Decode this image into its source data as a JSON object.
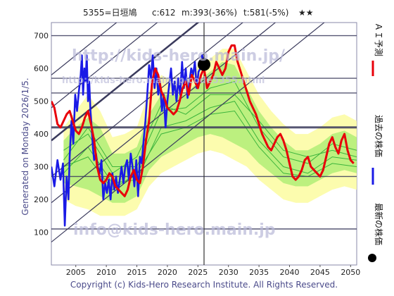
{
  "header": {
    "code_name": "5355=日垣鳩",
    "current": "c:612",
    "mid": "m:393(-36%)",
    "target": "t:581(-5%)",
    "stars": "★★"
  },
  "side_text": "Generated on Monday 2026/1/5.",
  "copyright": "Copyright (c) Kids-Hero Research Institute. All Rights Reserved.",
  "watermarks": {
    "url": "http://kids-hero.main.jp/",
    "url_sub": "http://kids-hero.main.jp/code5355.html",
    "email": "info@kids-hero.main.jp"
  },
  "legend": {
    "ai": "ＡＩ予測",
    "past": "過去の株価",
    "latest": "最新の株価"
  },
  "colors": {
    "ai_line": "#e8000a",
    "past_line": "#1a1ae6",
    "latest_marker": "#000000",
    "band_outer": "#fbfba0",
    "band_inner": "#b5ee7a",
    "band_lines": "#3cb43c",
    "grid": "#8a8aa8",
    "channel": "#3a3a5c"
  },
  "chart_data": {
    "type": "line",
    "xlim": [
      2001,
      2051
    ],
    "ylim": [
      0,
      740
    ],
    "x_ticks": [
      2005,
      2010,
      2015,
      2020,
      2025,
      2030,
      2035,
      2040,
      2045,
      2050
    ],
    "y_ticks": [
      100,
      200,
      300,
      400,
      500,
      600,
      700
    ],
    "hlines": [
      {
        "y": 700,
        "strength": 1
      },
      {
        "y": 570,
        "strength": 1
      },
      {
        "y": 525,
        "strength": 1
      },
      {
        "y": 420,
        "strength": 3
      },
      {
        "y": 270,
        "strength": 1
      },
      {
        "y": 110,
        "strength": 1
      }
    ],
    "vline": 2026,
    "channel": {
      "slope": 15,
      "intercepts_at_2001": [
        70,
        190,
        270,
        380,
        480,
        580
      ]
    },
    "latest": {
      "x": 2026,
      "y": 612
    },
    "series": [
      {
        "key": "past",
        "x": [
          2001.0,
          2001.5,
          2002.0,
          2002.5,
          2002.9,
          2003.2,
          2003.5,
          2003.8,
          2004.0,
          2004.3,
          2004.6,
          2004.9,
          2005.2,
          2005.5,
          2005.8,
          2006.0,
          2006.2,
          2006.4,
          2006.6,
          2006.8,
          2007.0,
          2007.2,
          2007.4,
          2007.6,
          2007.8,
          2008.0,
          2008.3,
          2008.6,
          2008.9,
          2009.2,
          2009.5,
          2009.8,
          2010.1,
          2010.4,
          2010.7,
          2011.0,
          2011.3,
          2011.6,
          2011.9,
          2012.2,
          2012.5,
          2012.8,
          2013.1,
          2013.4,
          2013.7,
          2014.0,
          2014.3,
          2014.6,
          2014.9,
          2015.2,
          2015.5,
          2015.8,
          2016.1,
          2016.4,
          2016.7,
          2017.0,
          2017.3,
          2017.6,
          2017.9,
          2018.2,
          2018.5,
          2018.8,
          2019.1,
          2019.4,
          2019.7,
          2020.0,
          2020.3,
          2020.6,
          2020.9,
          2021.2,
          2021.5,
          2021.8,
          2022.1,
          2022.4,
          2022.7,
          2023.0,
          2023.3,
          2023.6,
          2023.9,
          2024.2,
          2024.5,
          2024.8,
          2025.1,
          2025.4,
          2025.7,
          2026.0
        ],
        "y": [
          300,
          240,
          320,
          260,
          310,
          120,
          270,
          200,
          330,
          440,
          370,
          520,
          470,
          530,
          580,
          640,
          520,
          600,
          560,
          640,
          500,
          560,
          470,
          420,
          360,
          320,
          340,
          300,
          280,
          320,
          200,
          250,
          220,
          260,
          200,
          280,
          230,
          270,
          220,
          260,
          300,
          250,
          300,
          320,
          260,
          340,
          300,
          240,
          320,
          210,
          330,
          310,
          380,
          440,
          520,
          610,
          570,
          640,
          540,
          600,
          520,
          560,
          470,
          520,
          420,
          500,
          550,
          600,
          520,
          560,
          500,
          570,
          520,
          620,
          540,
          600,
          510,
          560,
          600,
          580,
          620,
          540,
          590,
          600,
          640,
          612
        ]
      },
      {
        "key": "ai",
        "x": [
          2001.0,
          2001.5,
          2002.0,
          2002.5,
          2003.0,
          2003.5,
          2004.0,
          2004.5,
          2005.0,
          2005.5,
          2006.0,
          2006.5,
          2007.0,
          2007.5,
          2008.0,
          2008.5,
          2009.0,
          2009.5,
          2010.0,
          2010.5,
          2011.0,
          2011.5,
          2012.0,
          2012.5,
          2013.0,
          2013.5,
          2014.0,
          2014.5,
          2015.0,
          2015.5,
          2016.0,
          2016.5,
          2017.0,
          2017.5,
          2018.0,
          2018.5,
          2019.0,
          2019.5,
          2020.0,
          2020.5,
          2021.0,
          2021.5,
          2022.0,
          2022.5,
          2023.0,
          2023.5,
          2024.0,
          2024.5,
          2025.0,
          2025.5,
          2026.0,
          2026.5,
          2027.0,
          2027.5,
          2028.0,
          2028.5,
          2029.0,
          2029.5,
          2030.0,
          2030.5,
          2031.0,
          2031.5,
          2032.0,
          2032.5,
          2033.0,
          2033.5,
          2034.0,
          2034.5,
          2035.0,
          2035.5,
          2036.0,
          2036.5,
          2037.0,
          2037.5,
          2038.0,
          2038.5,
          2039.0,
          2039.5,
          2040.0,
          2040.5,
          2041.0,
          2041.5,
          2042.0,
          2042.5,
          2043.0,
          2043.5,
          2044.0,
          2044.5,
          2045.0,
          2045.5,
          2046.0,
          2046.5,
          2047.0,
          2047.5,
          2048.0,
          2048.5,
          2049.0,
          2049.5,
          2050.0,
          2050.5
        ],
        "y": [
          500,
          480,
          430,
          420,
          440,
          460,
          470,
          440,
          410,
          400,
          420,
          450,
          470,
          430,
          380,
          300,
          260,
          250,
          260,
          280,
          270,
          240,
          230,
          220,
          210,
          230,
          270,
          290,
          260,
          250,
          300,
          380,
          440,
          560,
          600,
          580,
          530,
          510,
          480,
          470,
          460,
          470,
          500,
          540,
          560,
          520,
          580,
          560,
          540,
          580,
          600,
          540,
          560,
          580,
          620,
          600,
          580,
          600,
          650,
          670,
          670,
          620,
          590,
          560,
          530,
          500,
          480,
          460,
          430,
          400,
          380,
          360,
          350,
          370,
          390,
          400,
          380,
          350,
          310,
          270,
          260,
          270,
          290,
          320,
          330,
          300,
          290,
          280,
          270,
          290,
          330,
          370,
          390,
          360,
          340,
          380,
          400,
          350,
          320,
          310
        ]
      }
    ],
    "bands": [
      {
        "key": "outer",
        "x": [
          2003,
          2005,
          2007,
          2009,
          2011,
          2013,
          2015,
          2017,
          2019,
          2021,
          2023,
          2025,
          2027,
          2029,
          2031,
          2033,
          2035,
          2037,
          2039,
          2041,
          2043,
          2045,
          2047,
          2049,
          2051
        ],
        "upper": [
          420,
          470,
          520,
          470,
          390,
          400,
          420,
          530,
          580,
          560,
          560,
          610,
          630,
          660,
          660,
          590,
          520,
          470,
          430,
          400,
          400,
          420,
          450,
          460,
          440
        ],
        "lower": [
          200,
          180,
          170,
          150,
          150,
          150,
          170,
          240,
          280,
          300,
          320,
          340,
          350,
          340,
          320,
          300,
          260,
          230,
          200,
          190,
          190,
          210,
          230,
          240,
          230
        ]
      },
      {
        "key": "inner",
        "x": [
          2003,
          2005,
          2007,
          2009,
          2011,
          2013,
          2015,
          2017,
          2019,
          2021,
          2023,
          2025,
          2027,
          2029,
          2031,
          2033,
          2035,
          2037,
          2039,
          2041,
          2043,
          2045,
          2047,
          2049,
          2051
        ],
        "upper": [
          380,
          420,
          450,
          420,
          340,
          340,
          360,
          460,
          520,
          520,
          520,
          560,
          590,
          620,
          610,
          540,
          470,
          420,
          380,
          350,
          350,
          370,
          400,
          410,
          390
        ],
        "lower": [
          250,
          240,
          230,
          210,
          190,
          190,
          210,
          290,
          330,
          350,
          370,
          390,
          400,
          390,
          370,
          350,
          310,
          280,
          250,
          240,
          240,
          260,
          280,
          290,
          280
        ]
      }
    ],
    "band_lines": [
      {
        "x": [
          2003,
          2007,
          2011,
          2015,
          2019,
          2023,
          2027,
          2031,
          2035,
          2039,
          2043,
          2047,
          2051
        ],
        "y": [
          320,
          420,
          300,
          300,
          470,
          480,
          540,
          560,
          420,
          330,
          310,
          370,
          350
        ]
      },
      {
        "x": [
          2003,
          2007,
          2011,
          2015,
          2019,
          2023,
          2027,
          2031,
          2035,
          2039,
          2043,
          2047,
          2051
        ],
        "y": [
          280,
          360,
          250,
          260,
          420,
          440,
          480,
          500,
          380,
          300,
          280,
          330,
          320
        ]
      },
      {
        "x": [
          2003,
          2007,
          2011,
          2015,
          2019,
          2023,
          2027,
          2031,
          2035,
          2039,
          2043,
          2047,
          2051
        ],
        "y": [
          350,
          400,
          280,
          330,
          490,
          460,
          520,
          520,
          440,
          350,
          330,
          350,
          330
        ]
      },
      {
        "x": [
          2003,
          2007,
          2011,
          2015,
          2019,
          2023,
          2027,
          2031,
          2035,
          2039,
          2043,
          2047,
          2051
        ],
        "y": [
          300,
          330,
          230,
          280,
          400,
          420,
          460,
          470,
          360,
          280,
          270,
          310,
          300
        ]
      }
    ]
  }
}
